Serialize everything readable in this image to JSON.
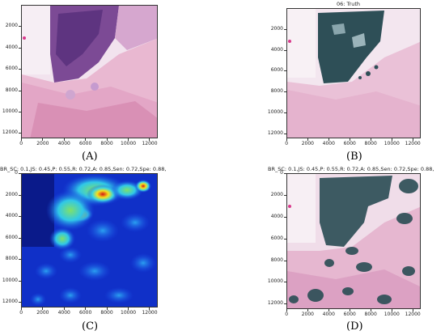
{
  "panels": [
    {
      "id": "A",
      "title": "",
      "caption": "(A)",
      "kind": "he",
      "y_ticks": [
        "2000",
        "4000",
        "6000",
        "8000",
        "10000",
        "12000"
      ],
      "x_ticks": [
        "0",
        "2000",
        "4000",
        "6000",
        "8000",
        "10000",
        "12000"
      ]
    },
    {
      "id": "B",
      "title": "06: Truth",
      "caption": "(B)",
      "kind": "truth",
      "y_ticks": [
        "2000",
        "4000",
        "6000",
        "8000",
        "10000",
        "12000"
      ],
      "x_ticks": [
        "0",
        "2000",
        "4000",
        "6000",
        "8000",
        "10000",
        "12000"
      ]
    },
    {
      "id": "C",
      "title": "BR_SC: 0.1,JS: 0.45,P: 0.55,R: 0.72,A: 0.85,Sen: 0.72,Spe: 0.88,",
      "caption": "(C)",
      "kind": "heatmap",
      "y_ticks": [
        "0",
        "2000",
        "4000",
        "6000",
        "8000",
        "10000",
        "12000"
      ],
      "x_ticks": [
        "0",
        "2000",
        "4000",
        "6000",
        "8000",
        "10000",
        "12000"
      ]
    },
    {
      "id": "D",
      "title": "BR_SC: 0.1,JS: 0.45,P: 0.55,R: 0.72,A: 0.85,Sen: 0.72,Spe: 0.88,",
      "caption": "(D)",
      "kind": "pred",
      "y_ticks": [
        "0",
        "2000",
        "4000",
        "6000",
        "8000",
        "10000",
        "12000"
      ],
      "x_ticks": [
        "0",
        "2000",
        "4000",
        "6000",
        "8000",
        "10000",
        "12000"
      ]
    }
  ],
  "colors": {
    "tissue_pink": "#e8b9d4",
    "tissue_purple": "#7a3f8f",
    "mask_teal": "#2e4f57",
    "heat_blue": "#1030c8",
    "heat_red": "#d41515"
  }
}
